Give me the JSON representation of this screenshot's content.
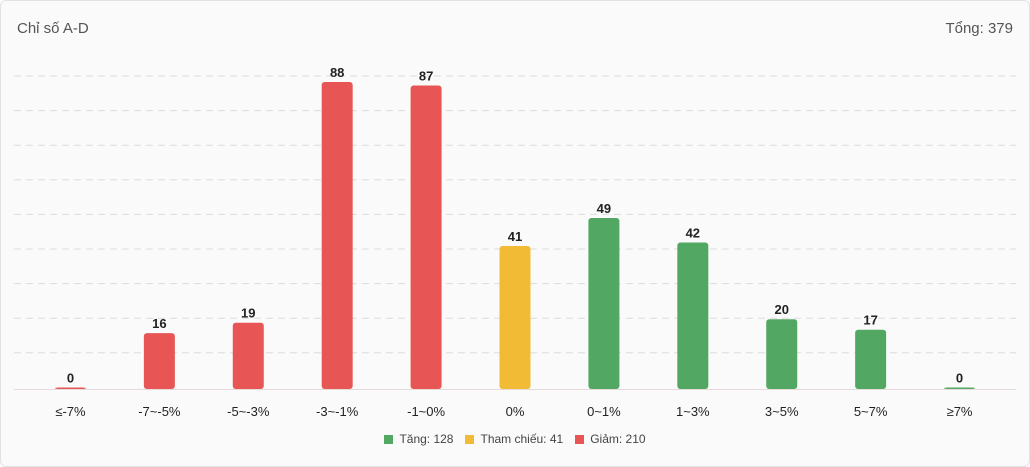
{
  "header": {
    "title": "Chỉ số A-D",
    "total": "Tổng: 379"
  },
  "colors": {
    "up": "#52a862",
    "ref": "#f2bb35",
    "down": "#e85555",
    "grid": "#dcdcdc"
  },
  "legend": [
    {
      "label": "Tăng: 128",
      "color": "#52a862"
    },
    {
      "label": "Tham chiếu: 41",
      "color": "#f2bb35"
    },
    {
      "label": "Giảm: 210",
      "color": "#e85555"
    }
  ],
  "chart_data": {
    "type": "bar",
    "title": "Chỉ số A-D",
    "categories": [
      "≤-7%",
      "-7~-5%",
      "-5~-3%",
      "-3~-1%",
      "-1~0%",
      "0%",
      "0~1%",
      "1~3%",
      "3~5%",
      "5~7%",
      "≥7%"
    ],
    "values": [
      0,
      16,
      19,
      88,
      87,
      41,
      49,
      42,
      20,
      17,
      0
    ],
    "bar_colors": [
      "#e85555",
      "#e85555",
      "#e85555",
      "#e85555",
      "#e85555",
      "#f2bb35",
      "#52a862",
      "#52a862",
      "#52a862",
      "#52a862",
      "#52a862"
    ],
    "ylim": [
      0,
      88
    ],
    "grid": true,
    "legend_position": "bottom"
  }
}
